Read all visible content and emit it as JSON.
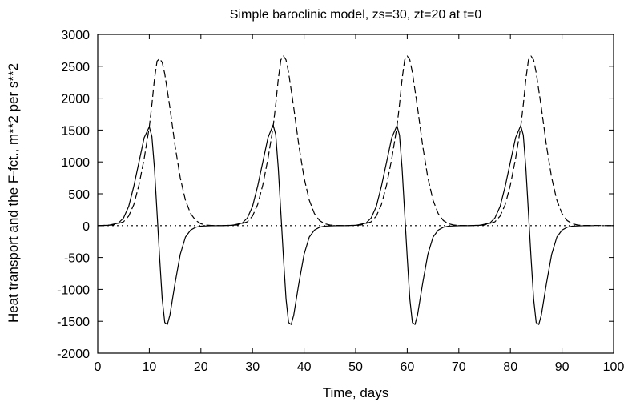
{
  "chart_data": {
    "type": "line",
    "title": "Simple baroclinic model, zs=30, zt=20 at t=0",
    "xlabel": "Time, days",
    "ylabel": "Heat transport and the F-fct., m**2 per s**2",
    "xlim": [
      0,
      100
    ],
    "ylim": [
      -2000,
      3000
    ],
    "x_ticks": [
      0,
      10,
      20,
      30,
      40,
      50,
      60,
      70,
      80,
      90,
      100
    ],
    "y_ticks": [
      3000,
      2500,
      2000,
      1500,
      1000,
      500,
      0,
      -500,
      -1000,
      -1500,
      -2000
    ],
    "grid": false,
    "legend": "none",
    "series": [
      {
        "style": "solid",
        "color": "#000000",
        "x": [
          0,
          2,
          4,
          5,
          6,
          7,
          8,
          9,
          10,
          10.5,
          11,
          11.5,
          12,
          12.5,
          13,
          13.5,
          14,
          15,
          16,
          17,
          18,
          19,
          20,
          22,
          24,
          24,
          26,
          28,
          29,
          30,
          31,
          32,
          33,
          34,
          34.5,
          35,
          35.5,
          36,
          36.5,
          37,
          37.5,
          38,
          39,
          40,
          41,
          42,
          43,
          44,
          46,
          48,
          48,
          50,
          52,
          53,
          54,
          55,
          56,
          57,
          58,
          58.5,
          59,
          59.5,
          60,
          60.5,
          61,
          61.5,
          62,
          63,
          64,
          65,
          66,
          67,
          68,
          70,
          72,
          72,
          74,
          76,
          77,
          78,
          79,
          80,
          81,
          82,
          82.5,
          83,
          83.5,
          84,
          84.5,
          85,
          85.5,
          86,
          87,
          88,
          89,
          90,
          91,
          92,
          94,
          96
        ],
        "y": [
          0,
          5,
          40,
          120,
          300,
          620,
          1000,
          1380,
          1550,
          1400,
          900,
          200,
          -500,
          -1150,
          -1520,
          -1550,
          -1400,
          -900,
          -450,
          -180,
          -70,
          -25,
          -8,
          -2,
          0,
          0,
          5,
          40,
          120,
          300,
          620,
          1000,
          1380,
          1580,
          1430,
          900,
          200,
          -500,
          -1150,
          -1520,
          -1550,
          -1400,
          -900,
          -450,
          -180,
          -70,
          -25,
          -8,
          -2,
          0,
          0,
          5,
          40,
          120,
          300,
          620,
          1000,
          1380,
          1570,
          1420,
          900,
          200,
          -500,
          -1150,
          -1520,
          -1550,
          -1400,
          -900,
          -450,
          -180,
          -70,
          -25,
          -8,
          -2,
          0,
          0,
          5,
          40,
          120,
          300,
          620,
          1000,
          1380,
          1570,
          1420,
          900,
          200,
          -500,
          -1150,
          -1520,
          -1550,
          -1400,
          -900,
          -450,
          -180,
          -70,
          -25,
          -8,
          -2,
          0
        ]
      },
      {
        "style": "dashed",
        "color": "#000000",
        "x": [
          0,
          3,
          5,
          6,
          7,
          8,
          9,
          10,
          10.5,
          11,
          11.5,
          12,
          12.5,
          13,
          14,
          15,
          16,
          17,
          18,
          19,
          20,
          21,
          22,
          24,
          24,
          27,
          29,
          30,
          31,
          32,
          33,
          34,
          34.5,
          35,
          35.5,
          36,
          36.5,
          37,
          38,
          39,
          40,
          41,
          42,
          43,
          44,
          45,
          46,
          48,
          48,
          51,
          53,
          54,
          55,
          56,
          57,
          58,
          58.5,
          59,
          59.5,
          60,
          60.5,
          61,
          62,
          63,
          64,
          65,
          66,
          67,
          68,
          69,
          70,
          72,
          72,
          75,
          77,
          78,
          79,
          80,
          81,
          82,
          82.5,
          83,
          83.5,
          84,
          84.5,
          85,
          86,
          87,
          88,
          89,
          90,
          91,
          92,
          93,
          94,
          100
        ],
        "y": [
          0,
          10,
          60,
          150,
          330,
          640,
          1050,
          1550,
          1900,
          2300,
          2580,
          2620,
          2560,
          2380,
          1850,
          1250,
          750,
          400,
          190,
          80,
          30,
          10,
          3,
          0,
          0,
          10,
          60,
          150,
          330,
          640,
          1050,
          1550,
          1900,
          2300,
          2600,
          2660,
          2600,
          2400,
          1850,
          1250,
          750,
          400,
          190,
          80,
          30,
          10,
          3,
          0,
          0,
          10,
          60,
          150,
          330,
          640,
          1050,
          1550,
          1900,
          2300,
          2600,
          2660,
          2600,
          2400,
          1850,
          1250,
          750,
          400,
          190,
          80,
          30,
          10,
          3,
          0,
          0,
          10,
          60,
          150,
          330,
          640,
          1050,
          1550,
          1900,
          2300,
          2600,
          2660,
          2600,
          2400,
          1850,
          1250,
          750,
          400,
          190,
          80,
          30,
          10,
          3,
          0
        ]
      },
      {
        "style": "dotted",
        "color": "#000000",
        "x": [
          0,
          100
        ],
        "y": [
          0,
          0
        ]
      }
    ]
  }
}
